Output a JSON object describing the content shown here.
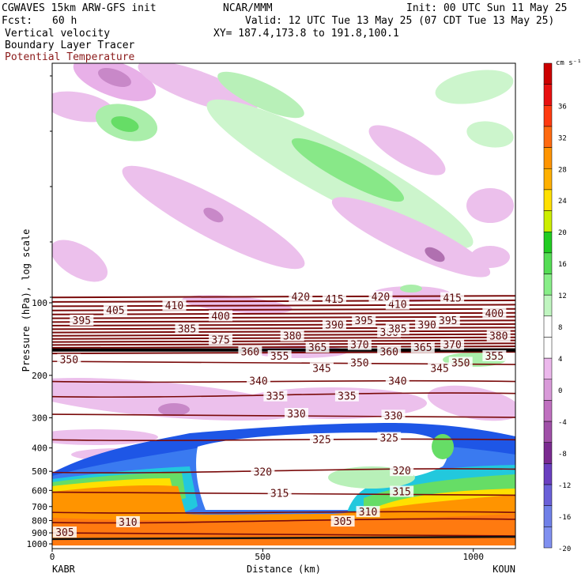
{
  "header": {
    "model": "CGWAVES 15km ARW-GFS init",
    "org": "NCAR/MMM",
    "init": "Init: 00 UTC Sun 11 May 25",
    "fcst_label": "Fcst:",
    "fcst_value": "60 h",
    "valid": "Valid: 12 UTC Tue 13 May 25 (07 CDT Tue 13 May 25)",
    "field1": "Vertical velocity",
    "field2": "Boundary Layer Tracer",
    "field3": "Potential Temperature",
    "xy": "XY= 187.4,173.8 to 191.8,100.1"
  },
  "colors": {
    "theta_contour": "#7a0a0a",
    "field3_text": "#8b1a1a"
  },
  "chart_data": {
    "type": "heatmap",
    "xlabel": "Distance (km)",
    "ylabel": "Pressure (hPa), log scale",
    "xlim": [
      0,
      1100
    ],
    "x_ticks": [
      0,
      500,
      1000
    ],
    "y_ticks": [
      100,
      200,
      300,
      400,
      500,
      600,
      700,
      800,
      900,
      1000
    ],
    "y_log_scale": true,
    "left_end_label": "KABR",
    "right_end_label": "KOUN",
    "colorbar": {
      "units": "cm s⁻¹",
      "tick_labels": [
        "36",
        "32",
        "28",
        "24",
        "20",
        "16",
        "12",
        "8",
        "4",
        "0",
        "-4",
        "-8",
        "-12",
        "-16",
        "-20"
      ],
      "colors": [
        "#cc0000",
        "#e81010",
        "#ff3a10",
        "#ff6a10",
        "#ff9400",
        "#ffb000",
        "#ffe000",
        "#ccee00",
        "#22cc22",
        "#55dd55",
        "#88ee88",
        "#c0f5c0",
        "#ffffff",
        "#ffffff",
        "#ecb8ec",
        "#d99ad9",
        "#c070c0",
        "#a050a8",
        "#7a2a90",
        "#6a3fc0",
        "#6a60d8",
        "#7080e8",
        "#8090f0"
      ]
    },
    "theta_contour_labels": [
      {
        "value": 305,
        "x": 30,
        "p": 900
      },
      {
        "value": 310,
        "x": 180,
        "p": 815
      },
      {
        "value": 305,
        "x": 690,
        "p": 810
      },
      {
        "value": 310,
        "x": 750,
        "p": 740
      },
      {
        "value": 315,
        "x": 540,
        "p": 620
      },
      {
        "value": 315,
        "x": 830,
        "p": 610
      },
      {
        "value": 320,
        "x": 500,
        "p": 505
      },
      {
        "value": 320,
        "x": 830,
        "p": 500
      },
      {
        "value": 325,
        "x": 640,
        "p": 370
      },
      {
        "value": 325,
        "x": 800,
        "p": 365
      },
      {
        "value": 330,
        "x": 580,
        "p": 290
      },
      {
        "value": 330,
        "x": 810,
        "p": 295
      },
      {
        "value": 335,
        "x": 530,
        "p": 245
      },
      {
        "value": 335,
        "x": 700,
        "p": 245
      },
      {
        "value": 340,
        "x": 490,
        "p": 212
      },
      {
        "value": 340,
        "x": 820,
        "p": 212
      },
      {
        "value": 345,
        "x": 640,
        "p": 188
      },
      {
        "value": 345,
        "x": 920,
        "p": 188
      },
      {
        "value": 350,
        "x": 40,
        "p": 173
      },
      {
        "value": 350,
        "x": 730,
        "p": 178
      },
      {
        "value": 350,
        "x": 970,
        "p": 178
      },
      {
        "value": 355,
        "x": 540,
        "p": 167
      },
      {
        "value": 355,
        "x": 1050,
        "p": 167
      },
      {
        "value": 360,
        "x": 470,
        "p": 160
      },
      {
        "value": 360,
        "x": 800,
        "p": 160
      },
      {
        "value": 365,
        "x": 630,
        "p": 154
      },
      {
        "value": 365,
        "x": 880,
        "p": 154
      },
      {
        "value": 370,
        "x": 730,
        "p": 150
      },
      {
        "value": 370,
        "x": 950,
        "p": 150
      },
      {
        "value": 375,
        "x": 400,
        "p": 143
      },
      {
        "value": 380,
        "x": 570,
        "p": 138
      },
      {
        "value": 380,
        "x": 800,
        "p": 133
      },
      {
        "value": 380,
        "x": 1060,
        "p": 138
      },
      {
        "value": 385,
        "x": 320,
        "p": 129
      },
      {
        "value": 385,
        "x": 820,
        "p": 129
      },
      {
        "value": 390,
        "x": 670,
        "p": 124
      },
      {
        "value": 390,
        "x": 890,
        "p": 124
      },
      {
        "value": 395,
        "x": 70,
        "p": 119
      },
      {
        "value": 395,
        "x": 740,
        "p": 119
      },
      {
        "value": 395,
        "x": 940,
        "p": 119
      },
      {
        "value": 400,
        "x": 400,
        "p": 114
      },
      {
        "value": 400,
        "x": 1050,
        "p": 111
      },
      {
        "value": 405,
        "x": 150,
        "p": 108
      },
      {
        "value": 410,
        "x": 290,
        "p": 103
      },
      {
        "value": 410,
        "x": 820,
        "p": 102
      },
      {
        "value": 415,
        "x": 670,
        "p": 97
      },
      {
        "value": 415,
        "x": 950,
        "p": 96
      },
      {
        "value": 420,
        "x": 590,
        "p": 95
      },
      {
        "value": 420,
        "x": 780,
        "p": 95
      }
    ]
  }
}
